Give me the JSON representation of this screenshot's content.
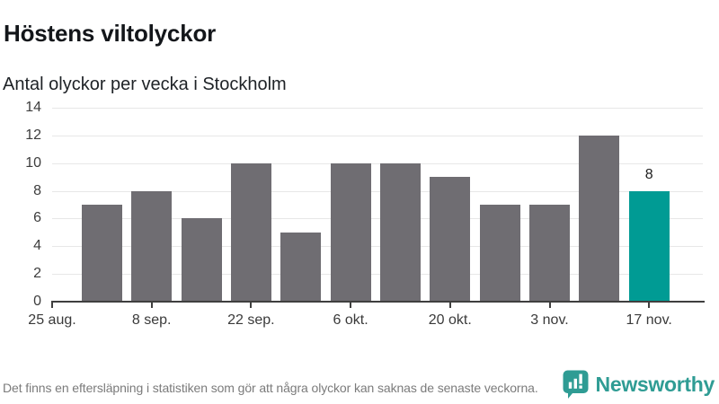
{
  "header": {
    "title": "Höstens viltolyckor",
    "subtitle": "Antal olyckor per vecka i Stockholm"
  },
  "chart_data": {
    "type": "bar",
    "title": "Höstens viltolyckor",
    "subtitle": "Antal olyckor per vecka i Stockholm",
    "xlabel": "",
    "ylabel": "",
    "values": [
      7,
      8,
      6,
      10,
      5,
      10,
      10,
      9,
      7,
      7,
      12,
      8
    ],
    "highlight_index": 11,
    "highlight_value_label": "8",
    "x_tick_labels": [
      "25 aug.",
      "8 sep.",
      "22 sep.",
      "6 okt.",
      "20 okt.",
      "3 nov.",
      "17 nov."
    ],
    "y_ticks": [
      0,
      2,
      4,
      6,
      8,
      10,
      12,
      14
    ],
    "ylim": [
      0,
      14
    ],
    "grid": true,
    "legend": "none",
    "bar_color": "#6f6d72",
    "highlight_color": "#009b94",
    "gridline_color": "#e7e7e7",
    "axis_color": "#3f3f3f"
  },
  "footer": {
    "note": "Det finns en eftersläpning i statistiken som gör att några olyckor kan saknas de senaste veckorna.",
    "brand": "Newsworthy",
    "brand_color": "#2f9c94"
  }
}
